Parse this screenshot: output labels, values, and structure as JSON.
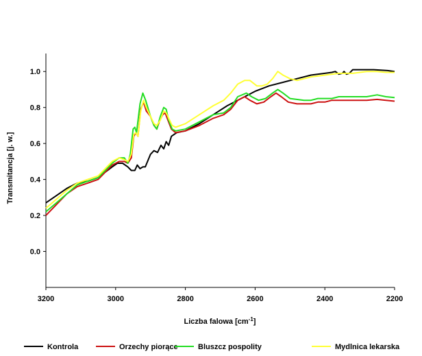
{
  "chart_data": {
    "type": "line",
    "title": "",
    "xlabel": "Liczba falowa [cm",
    "xlabel_sup": "-1",
    "xlabel_end": "]",
    "ylabel": "Transmitancja [j. w.]",
    "xlim": [
      3200,
      2200
    ],
    "ylim": [
      -0.2,
      1.1
    ],
    "x_ticks": [
      3200,
      3000,
      2800,
      2600,
      2400,
      2200
    ],
    "x_tick_labels": [
      "3200",
      "3000",
      "2800",
      "2600",
      "2400",
      "2200"
    ],
    "y_ticks": [
      0.0,
      0.2,
      0.4,
      0.6,
      0.8,
      1.0
    ],
    "y_tick_labels": [
      "0.0",
      "0.2",
      "0.4",
      "0.6",
      "0.8",
      "1.0"
    ],
    "legend_position": "bottom",
    "series": [
      {
        "name": "Kontrola",
        "color": "#000000",
        "points": [
          [
            3200,
            0.27
          ],
          [
            3170,
            0.31
          ],
          [
            3140,
            0.35
          ],
          [
            3110,
            0.38
          ],
          [
            3080,
            0.39
          ],
          [
            3050,
            0.41
          ],
          [
            3030,
            0.44
          ],
          [
            3010,
            0.47
          ],
          [
            2995,
            0.49
          ],
          [
            2980,
            0.49
          ],
          [
            2965,
            0.47
          ],
          [
            2955,
            0.45
          ],
          [
            2945,
            0.45
          ],
          [
            2938,
            0.48
          ],
          [
            2930,
            0.46
          ],
          [
            2922,
            0.47
          ],
          [
            2915,
            0.47
          ],
          [
            2900,
            0.54
          ],
          [
            2890,
            0.56
          ],
          [
            2880,
            0.55
          ],
          [
            2870,
            0.59
          ],
          [
            2862,
            0.57
          ],
          [
            2855,
            0.61
          ],
          [
            2848,
            0.59
          ],
          [
            2840,
            0.64
          ],
          [
            2825,
            0.66
          ],
          [
            2800,
            0.67
          ],
          [
            2760,
            0.71
          ],
          [
            2720,
            0.76
          ],
          [
            2680,
            0.81
          ],
          [
            2640,
            0.85
          ],
          [
            2600,
            0.89
          ],
          [
            2560,
            0.92
          ],
          [
            2520,
            0.94
          ],
          [
            2480,
            0.96
          ],
          [
            2440,
            0.98
          ],
          [
            2400,
            0.99
          ],
          [
            2380,
            0.995
          ],
          [
            2370,
            1.0
          ],
          [
            2360,
            0.985
          ],
          [
            2350,
            0.99
          ],
          [
            2345,
            1.0
          ],
          [
            2338,
            0.985
          ],
          [
            2330,
            0.99
          ],
          [
            2320,
            1.01
          ],
          [
            2300,
            1.01
          ],
          [
            2260,
            1.01
          ],
          [
            2220,
            1.005
          ],
          [
            2200,
            1.0
          ]
        ]
      },
      {
        "name": "Orzechy piorące",
        "color": "#cc1111",
        "points": [
          [
            3200,
            0.2
          ],
          [
            3170,
            0.26
          ],
          [
            3140,
            0.32
          ],
          [
            3110,
            0.36
          ],
          [
            3080,
            0.38
          ],
          [
            3050,
            0.4
          ],
          [
            3030,
            0.44
          ],
          [
            3010,
            0.48
          ],
          [
            2990,
            0.5
          ],
          [
            2975,
            0.5
          ],
          [
            2965,
            0.49
          ],
          [
            2955,
            0.52
          ],
          [
            2948,
            0.64
          ],
          [
            2942,
            0.66
          ],
          [
            2936,
            0.64
          ],
          [
            2928,
            0.79
          ],
          [
            2920,
            0.83
          ],
          [
            2912,
            0.78
          ],
          [
            2900,
            0.75
          ],
          [
            2890,
            0.7
          ],
          [
            2882,
            0.68
          ],
          [
            2875,
            0.72
          ],
          [
            2865,
            0.76
          ],
          [
            2858,
            0.77
          ],
          [
            2850,
            0.73
          ],
          [
            2840,
            0.68
          ],
          [
            2828,
            0.66
          ],
          [
            2800,
            0.67
          ],
          [
            2760,
            0.7
          ],
          [
            2720,
            0.74
          ],
          [
            2690,
            0.76
          ],
          [
            2670,
            0.79
          ],
          [
            2650,
            0.84
          ],
          [
            2630,
            0.86
          ],
          [
            2615,
            0.84
          ],
          [
            2595,
            0.82
          ],
          [
            2575,
            0.83
          ],
          [
            2555,
            0.86
          ],
          [
            2540,
            0.88
          ],
          [
            2525,
            0.86
          ],
          [
            2505,
            0.83
          ],
          [
            2480,
            0.82
          ],
          [
            2440,
            0.82
          ],
          [
            2420,
            0.83
          ],
          [
            2400,
            0.83
          ],
          [
            2380,
            0.84
          ],
          [
            2360,
            0.84
          ],
          [
            2340,
            0.84
          ],
          [
            2320,
            0.84
          ],
          [
            2300,
            0.84
          ],
          [
            2280,
            0.84
          ],
          [
            2250,
            0.845
          ],
          [
            2225,
            0.84
          ],
          [
            2200,
            0.835
          ]
        ]
      },
      {
        "name": "Bluszcz pospolity",
        "color": "#22dd22",
        "points": [
          [
            3200,
            0.22
          ],
          [
            3170,
            0.27
          ],
          [
            3140,
            0.32
          ],
          [
            3110,
            0.37
          ],
          [
            3080,
            0.39
          ],
          [
            3050,
            0.41
          ],
          [
            3030,
            0.45
          ],
          [
            3010,
            0.49
          ],
          [
            2990,
            0.52
          ],
          [
            2975,
            0.52
          ],
          [
            2965,
            0.49
          ],
          [
            2958,
            0.54
          ],
          [
            2950,
            0.68
          ],
          [
            2945,
            0.69
          ],
          [
            2940,
            0.66
          ],
          [
            2930,
            0.82
          ],
          [
            2922,
            0.88
          ],
          [
            2914,
            0.84
          ],
          [
            2900,
            0.75
          ],
          [
            2890,
            0.7
          ],
          [
            2882,
            0.68
          ],
          [
            2872,
            0.75
          ],
          [
            2862,
            0.8
          ],
          [
            2855,
            0.79
          ],
          [
            2848,
            0.73
          ],
          [
            2838,
            0.68
          ],
          [
            2828,
            0.67
          ],
          [
            2800,
            0.68
          ],
          [
            2760,
            0.72
          ],
          [
            2720,
            0.76
          ],
          [
            2690,
            0.77
          ],
          [
            2670,
            0.8
          ],
          [
            2650,
            0.86
          ],
          [
            2625,
            0.88
          ],
          [
            2610,
            0.86
          ],
          [
            2590,
            0.84
          ],
          [
            2570,
            0.85
          ],
          [
            2550,
            0.88
          ],
          [
            2535,
            0.9
          ],
          [
            2520,
            0.88
          ],
          [
            2500,
            0.85
          ],
          [
            2460,
            0.84
          ],
          [
            2440,
            0.84
          ],
          [
            2420,
            0.85
          ],
          [
            2400,
            0.85
          ],
          [
            2380,
            0.85
          ],
          [
            2360,
            0.86
          ],
          [
            2340,
            0.86
          ],
          [
            2320,
            0.86
          ],
          [
            2300,
            0.86
          ],
          [
            2280,
            0.86
          ],
          [
            2250,
            0.87
          ],
          [
            2225,
            0.86
          ],
          [
            2200,
            0.855
          ]
        ]
      },
      {
        "name": "Mydlnica lekarska",
        "color": "#ffff33",
        "points": [
          [
            3200,
            0.24
          ],
          [
            3170,
            0.29
          ],
          [
            3140,
            0.34
          ],
          [
            3110,
            0.38
          ],
          [
            3080,
            0.4
          ],
          [
            3050,
            0.42
          ],
          [
            3030,
            0.46
          ],
          [
            3010,
            0.5
          ],
          [
            2990,
            0.52
          ],
          [
            2975,
            0.51
          ],
          [
            2965,
            0.5
          ],
          [
            2955,
            0.54
          ],
          [
            2948,
            0.65
          ],
          [
            2942,
            0.66
          ],
          [
            2936,
            0.64
          ],
          [
            2928,
            0.78
          ],
          [
            2920,
            0.84
          ],
          [
            2912,
            0.8
          ],
          [
            2900,
            0.75
          ],
          [
            2890,
            0.71
          ],
          [
            2882,
            0.7
          ],
          [
            2872,
            0.73
          ],
          [
            2862,
            0.78
          ],
          [
            2855,
            0.77
          ],
          [
            2848,
            0.74
          ],
          [
            2838,
            0.7
          ],
          [
            2828,
            0.69
          ],
          [
            2800,
            0.71
          ],
          [
            2760,
            0.76
          ],
          [
            2720,
            0.81
          ],
          [
            2690,
            0.84
          ],
          [
            2670,
            0.88
          ],
          [
            2650,
            0.93
          ],
          [
            2630,
            0.95
          ],
          [
            2615,
            0.95
          ],
          [
            2595,
            0.92
          ],
          [
            2580,
            0.92
          ],
          [
            2565,
            0.93
          ],
          [
            2550,
            0.96
          ],
          [
            2535,
            1.0
          ],
          [
            2520,
            0.98
          ],
          [
            2500,
            0.96
          ],
          [
            2480,
            0.95
          ],
          [
            2440,
            0.97
          ],
          [
            2400,
            0.98
          ],
          [
            2360,
            0.99
          ],
          [
            2320,
            0.99
          ],
          [
            2280,
            1.0
          ],
          [
            2250,
            1.0
          ],
          [
            2225,
            0.995
          ],
          [
            2200,
            0.995
          ]
        ]
      }
    ]
  }
}
